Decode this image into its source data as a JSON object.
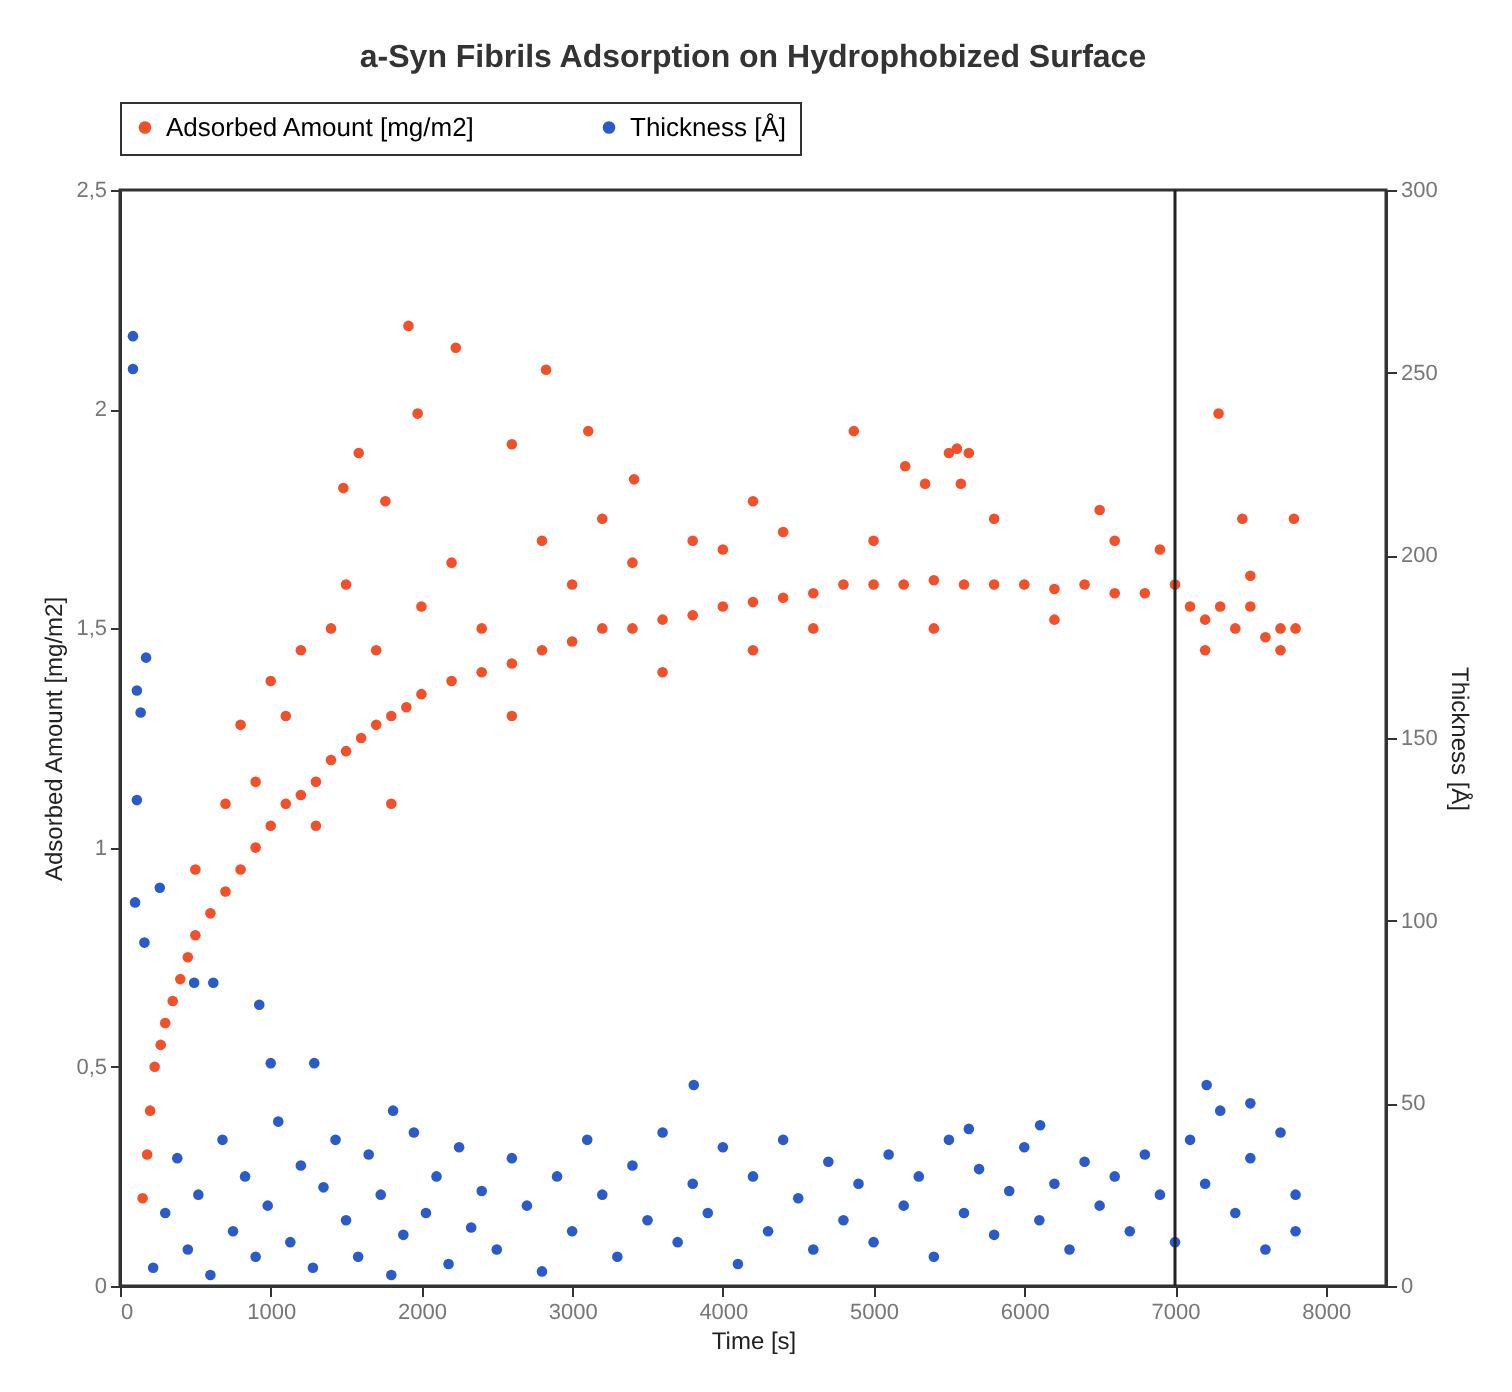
{
  "chart_data": {
    "type": "scatter",
    "title": "a-Syn Fibrils Adsorption on Hydrophobized Surface",
    "xlabel": "Time [s]",
    "ylabel": "Adsorbed Amount [mg/m2]",
    "y2label": "Thickness [Å]",
    "xlim": [
      0,
      8400
    ],
    "xticks": [
      0,
      1000,
      2000,
      3000,
      4000,
      5000,
      6000,
      7000,
      8000
    ],
    "ylim": [
      0,
      2.5
    ],
    "yticks": [
      0,
      {
        "value": 0.5,
        "label": "0,5"
      },
      1,
      {
        "value": 1.5,
        "label": "1,5"
      },
      2,
      {
        "value": 2.5,
        "label": "2,5"
      }
    ],
    "y2lim": [
      0,
      300
    ],
    "y2ticks": [
      0,
      50,
      100,
      150,
      200,
      250,
      300
    ],
    "legend": "top",
    "marker": "circle",
    "ref_lines": [
      {
        "axis": "x",
        "value": 7000,
        "color": "#222222"
      }
    ],
    "series": [
      {
        "name": "Adsorbed Amount [mg/m2]",
        "color": "#f0502a",
        "x": [
          150,
          180,
          200,
          230,
          270,
          300,
          350,
          400,
          450,
          500,
          500,
          600,
          700,
          700,
          800,
          800,
          900,
          900,
          1000,
          1000,
          1100,
          1100,
          1200,
          1200,
          1300,
          1300,
          1400,
          1400,
          1482,
          1500,
          1500,
          1584,
          1600,
          1700,
          1700,
          1761,
          1800,
          1800,
          1900,
          1914,
          1975,
          2000,
          2000,
          2200,
          2200,
          2228,
          2400,
          2400,
          2600,
          2600,
          2600,
          2800,
          2800,
          2827,
          3000,
          3000,
          3107,
          3200,
          3200,
          3400,
          3400,
          3411,
          3600,
          3600,
          3800,
          3800,
          4000,
          4000,
          4200,
          4200,
          4200,
          4400,
          4400,
          4600,
          4600,
          4800,
          4869,
          5000,
          5000,
          5200,
          5210,
          5342,
          5400,
          5400,
          5500,
          5553,
          5579,
          5600,
          5632,
          5800,
          5800,
          6000,
          6200,
          6200,
          6400,
          6500,
          6600,
          6600,
          6800,
          6900,
          7000,
          7100,
          7200,
          7200,
          7289,
          7300,
          7400,
          7447,
          7500,
          7500,
          7600,
          7700,
          7700,
          7789,
          7800
        ],
        "values": [
          0.2,
          0.3,
          0.4,
          0.5,
          0.55,
          0.6,
          0.65,
          0.7,
          0.75,
          0.8,
          0.95,
          0.85,
          0.9,
          1.1,
          0.95,
          1.28,
          1.0,
          1.15,
          1.05,
          1.38,
          1.1,
          1.3,
          1.12,
          1.45,
          1.15,
          1.05,
          1.2,
          1.5,
          1.82,
          1.22,
          1.6,
          1.9,
          1.25,
          1.28,
          1.45,
          1.79,
          1.3,
          1.1,
          1.32,
          2.19,
          1.99,
          1.35,
          1.55,
          1.38,
          1.65,
          2.14,
          1.4,
          1.5,
          1.42,
          1.3,
          1.92,
          1.45,
          1.7,
          2.09,
          1.47,
          1.6,
          1.95,
          1.5,
          1.75,
          1.5,
          1.65,
          1.84,
          1.52,
          1.4,
          1.53,
          1.7,
          1.55,
          1.68,
          1.56,
          1.45,
          1.79,
          1.57,
          1.72,
          1.58,
          1.5,
          1.6,
          1.95,
          1.6,
          1.7,
          1.6,
          1.87,
          1.83,
          1.61,
          1.5,
          1.9,
          1.91,
          1.83,
          1.6,
          1.9,
          1.6,
          1.75,
          1.6,
          1.59,
          1.52,
          1.6,
          1.77,
          1.58,
          1.7,
          1.58,
          1.68,
          1.6,
          1.55,
          1.52,
          1.45,
          1.99,
          1.55,
          1.5,
          1.75,
          1.55,
          1.62,
          1.48,
          1.5,
          1.45,
          1.75,
          1.5
        ]
      },
      {
        "name": "Thickness [Å]",
        "color": "#2a5bc8",
        "axis": "y2",
        "x": [
          86,
          86,
          100,
          112,
          112,
          137,
          162,
          173,
          220,
          264,
          300,
          380,
          450,
          492,
          520,
          600,
          619,
          680,
          750,
          830,
          900,
          924,
          980,
          1000,
          1050,
          1130,
          1200,
          1280,
          1289,
          1350,
          1430,
          1500,
          1580,
          1650,
          1730,
          1800,
          1812,
          1880,
          1950,
          2030,
          2100,
          2180,
          2250,
          2330,
          2400,
          2500,
          2600,
          2700,
          2800,
          2900,
          3000,
          3100,
          3200,
          3300,
          3400,
          3500,
          3600,
          3700,
          3800,
          3807,
          3900,
          4000,
          4100,
          4200,
          4300,
          4400,
          4500,
          4600,
          4700,
          4800,
          4900,
          5000,
          5100,
          5200,
          5300,
          5400,
          5500,
          5600,
          5632,
          5700,
          5800,
          5900,
          6000,
          6100,
          6105,
          6200,
          6300,
          6400,
          6500,
          6600,
          6700,
          6800,
          6900,
          7000,
          7100,
          7200,
          7210,
          7300,
          7400,
          7500,
          7500,
          7600,
          7700,
          7800,
          7800
        ],
        "values": [
          260,
          251,
          105,
          163,
          133,
          157,
          94,
          172,
          5,
          109,
          20,
          35,
          10,
          83,
          25,
          3,
          83,
          40,
          15,
          30,
          8,
          77,
          22,
          61,
          45,
          12,
          33,
          5,
          61,
          27,
          40,
          18,
          8,
          36,
          25,
          3,
          48,
          14,
          42,
          20,
          30,
          6,
          38,
          16,
          26,
          10,
          35,
          22,
          4,
          30,
          15,
          40,
          25,
          8,
          33,
          18,
          42,
          12,
          28,
          55,
          20,
          38,
          6,
          30,
          15,
          40,
          24,
          10,
          34,
          18,
          28,
          12,
          36,
          22,
          30,
          8,
          40,
          20,
          43,
          32,
          14,
          26,
          38,
          18,
          44,
          28,
          10,
          34,
          22,
          30,
          15,
          36,
          25,
          12,
          40,
          28,
          55,
          48,
          20,
          35,
          50,
          10,
          42,
          25,
          15
        ]
      }
    ]
  }
}
